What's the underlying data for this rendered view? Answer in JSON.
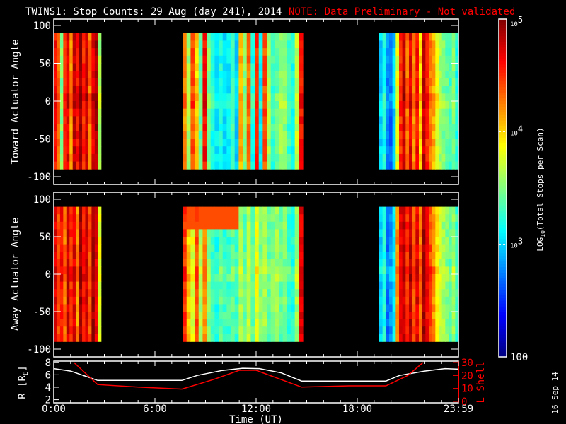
{
  "title": "TWINS1: Stop Counts: 29 Aug (day 241), 2014",
  "note": "NOTE: Data Preliminary - Not validated",
  "footer_date": "16 Sep 14",
  "colors": {
    "background": "#000000",
    "axes": "#ffffff",
    "note": "#ff0000",
    "lshell": "#ff0000",
    "radius": "#ffffff"
  },
  "chart_data": [
    {
      "type": "heatmap",
      "panel": "toward",
      "ylabel": "Toward Actuator Angle",
      "ylim": [
        -110,
        110
      ],
      "yticks": [
        "100",
        "50",
        "0",
        "-50",
        "-100"
      ],
      "ytick_values": [
        100,
        50,
        0,
        -50,
        -100
      ],
      "data_angle_range": [
        -90,
        90
      ],
      "xlim_hours": [
        0,
        24
      ],
      "segments": [
        {
          "start_hour": 0.0,
          "end_hour": 2.8,
          "log10_counts": [
            4.6,
            4.3,
            3.5,
            4.5,
            4.7,
            4.2,
            4.8,
            4.6,
            4.9,
            4.5,
            4.8,
            4.3,
            4.7,
            4.9,
            3.6
          ]
        },
        {
          "start_hour": 7.64,
          "end_hour": 14.77,
          "log10_counts": [
            4.2,
            3.6,
            4.4,
            4.0,
            3.4,
            4.6,
            3.5,
            3.2,
            3.1,
            3.2,
            3.0,
            3.1,
            3.3,
            3.0,
            4.1,
            3.5,
            4.3,
            3.2,
            4.5,
            3.1,
            4.4,
            3.6,
            3.3,
            3.4,
            3.6,
            3.5,
            3.3,
            3.2,
            3.7,
            4.6
          ]
        },
        {
          "start_hour": 19.3,
          "end_hour": 24.0,
          "log10_counts": [
            3.0,
            3.2,
            2.8,
            2.7,
            3.0,
            3.8,
            4.5,
            4.8,
            4.3,
            4.7,
            4.2,
            4.6,
            4.0,
            4.8,
            4.5,
            4.3,
            4.1,
            3.8,
            3.6,
            3.5,
            3.4,
            3.3,
            3.5,
            3.2
          ]
        }
      ]
    },
    {
      "type": "heatmap",
      "panel": "away",
      "ylabel": "Away Actuator Angle",
      "ylim": [
        -110,
        110
      ],
      "yticks": [
        "100",
        "50",
        "0",
        "-50",
        "-100"
      ],
      "ytick_values": [
        100,
        50,
        0,
        -50,
        -100
      ],
      "data_angle_range": [
        -90,
        90
      ],
      "xlim_hours": [
        0,
        24
      ],
      "segments": [
        {
          "start_hour": 0.0,
          "end_hour": 2.8,
          "log10_counts": [
            4.7,
            4.4,
            4.6,
            4.3,
            4.8,
            4.5,
            4.7,
            4.2,
            4.9,
            4.6,
            4.8,
            4.4,
            4.9,
            4.7,
            3.8
          ]
        },
        {
          "start_hour": 7.64,
          "end_hour": 14.77,
          "log10_counts": [
            4.5,
            4.0,
            3.8,
            4.4,
            3.6,
            4.2,
            3.5,
            3.3,
            3.2,
            3.4,
            3.3,
            3.3,
            3.4,
            3.3,
            3.6,
            3.4,
            3.7,
            3.4,
            3.8,
            3.5,
            3.6,
            3.4,
            3.5,
            3.6,
            3.4,
            3.5,
            3.3,
            3.2,
            3.6,
            4.7
          ]
        },
        {
          "start_hour": 19.3,
          "end_hour": 24.0,
          "log10_counts": [
            3.0,
            3.2,
            2.7,
            2.8,
            3.1,
            4.2,
            4.7,
            4.8,
            4.5,
            4.8,
            4.4,
            4.7,
            4.3,
            4.9,
            4.6,
            4.4,
            4.2,
            3.9,
            3.7,
            3.6,
            3.5,
            3.4,
            3.6,
            3.3
          ]
        }
      ]
    },
    {
      "type": "line",
      "panel": "orbit",
      "xlabel": "Time (UT)",
      "xticks": [
        "0:00",
        "6:00",
        "12:00",
        "18:00",
        "23:59"
      ],
      "xtick_values": [
        0,
        6,
        12,
        18,
        24
      ],
      "ylabel_left": "R [R",
      "ylabel_left_sub": "E",
      "ylabel_left_end": "]",
      "ylim_left": [
        1.5,
        8.2
      ],
      "yticks_left": [
        "8",
        "6",
        "4",
        "2"
      ],
      "ytick_values_left": [
        8,
        6,
        4,
        2
      ],
      "ylabel_right": "L Shell",
      "ylim_right": [
        0,
        30
      ],
      "yticks_right": [
        "30",
        "20",
        "10",
        "0"
      ],
      "ytick_values_right": [
        30,
        20,
        10,
        0
      ],
      "series": [
        {
          "name": "R",
          "axis": "left",
          "x": [
            0,
            1,
            2.6,
            7.6,
            8.5,
            10,
            11.2,
            12.2,
            13.5,
            14.7,
            19.7,
            20.5,
            22,
            23.2,
            24
          ],
          "y": [
            7.0,
            6.6,
            5.1,
            5.1,
            5.9,
            6.7,
            7.05,
            7.0,
            6.3,
            5.0,
            5.0,
            5.9,
            6.6,
            7.0,
            6.9
          ]
        },
        {
          "name": "L Shell",
          "axis": "right",
          "x": [
            1.2,
            2.6,
            5,
            7.6,
            9.5,
            11,
            12,
            14.7,
            17.5,
            19.7,
            21,
            21.9
          ],
          "y": [
            30,
            13,
            11,
            9.5,
            17,
            24,
            24,
            11,
            12,
            12,
            20,
            30
          ]
        }
      ]
    },
    {
      "type": "colorbar",
      "label": "LOG",
      "label_sub": "10",
      "label_end": "(Total Stops per Scan)",
      "range_log10": [
        2,
        5
      ],
      "ticks": [
        {
          "base": "10",
          "exp": "5",
          "value": 5
        },
        {
          "base": "10",
          "exp": "4",
          "value": 4
        },
        {
          "base": "10",
          "exp": "3",
          "value": 3
        },
        {
          "base": "100",
          "exp": "",
          "value": 2
        }
      ]
    }
  ]
}
